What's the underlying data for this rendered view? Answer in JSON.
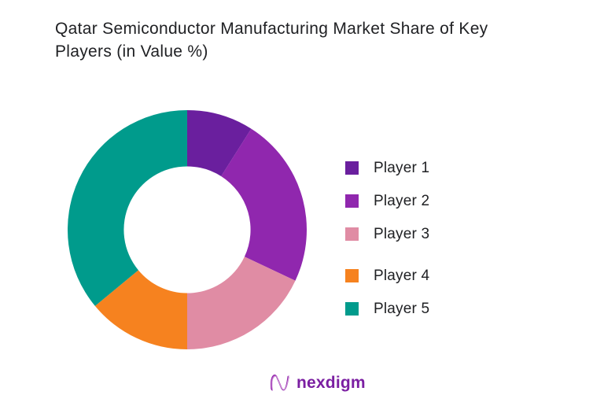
{
  "title": "Qatar Semiconductor Manufacturing Market Share of Key Players (in Value %)",
  "chart_data": {
    "type": "pie",
    "subtype": "donut",
    "title": "Qatar Semiconductor Manufacturing Market Share of Key Players (in Value %)",
    "categories": [
      "Player 1",
      "Player 2",
      "Player 3",
      "Player 4",
      "Player 5"
    ],
    "values": [
      9,
      23,
      18,
      14,
      36
    ],
    "unit": "percent of value",
    "colors": [
      "#6A1F9E",
      "#9027AE",
      "#E08CA4",
      "#F6821F",
      "#009B8C"
    ],
    "legend_position": "right",
    "start_angle_deg": 0,
    "direction": "clockwise",
    "inner_radius_ratio": 0.53,
    "data_labels": "none"
  },
  "footer": {
    "brand": "nexdigm",
    "brand_color": "#7B1FA2",
    "logo_icon": "nexdigm-wave-n-icon"
  }
}
